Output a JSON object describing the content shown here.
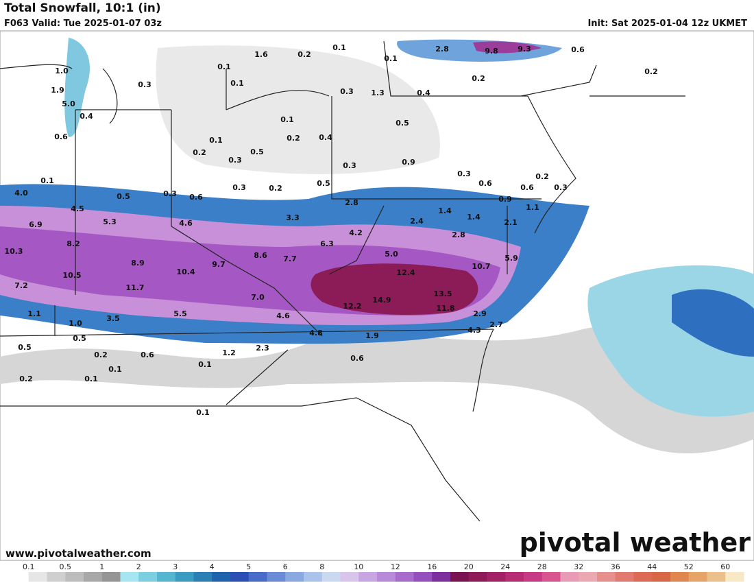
{
  "header": {
    "title": "Total Snowfall, 10:1 (in)",
    "valid": "F063 Valid: Tue 2025-01-07 03z",
    "init": "Init: Sat 2025-01-04 12z UKMET"
  },
  "footer": {
    "url": "www.pivotalweather.com",
    "logo": "pivotal weather"
  },
  "snowfall_labels": [
    "1.6",
    "0.2",
    "0.1",
    "2.8",
    "9.8",
    "9.3",
    "0.6",
    "0.1",
    "0.2",
    "1.0",
    "0.1",
    "0.3",
    "0.1",
    "1.9",
    "0.3",
    "1.3",
    "0.4",
    "0.2",
    "5.0",
    "0.4",
    "0.1",
    "0.5",
    "0.6",
    "0.1",
    "0.2",
    "0.4",
    "0.2",
    "0.5",
    "0.3",
    "0.3",
    "0.9",
    "0.3",
    "0.2",
    "0.1",
    "0.3",
    "0.2",
    "0.5",
    "0.6",
    "0.6",
    "0.3",
    "4.0",
    "0.5",
    "0.3",
    "0.6",
    "0.9",
    "2.8",
    "1.1",
    "4.5",
    "1.4",
    "3.3",
    "5.3",
    "4.6",
    "6.9",
    "2.4",
    "1.4",
    "2.1",
    "4.2",
    "2.8",
    "8.2",
    "6.3",
    "10.3",
    "5.0",
    "8.6",
    "7.7",
    "9.7",
    "8.9",
    "5.9",
    "10.7",
    "10.4",
    "12.4",
    "10.5",
    "7.2",
    "11.7",
    "13.5",
    "7.0",
    "14.9",
    "12.2",
    "11.8",
    "1.1",
    "4.6",
    "5.5",
    "3.5",
    "2.9",
    "2.7",
    "1.0",
    "4.8",
    "4.3",
    "1.9",
    "0.5",
    "0.5",
    "0.6",
    "0.2",
    "2.3",
    "1.2",
    "0.6",
    "0.1",
    "0.1",
    "0.2",
    "0.1",
    "0.1"
  ],
  "colorbar": {
    "labels": [
      "0.1",
      "0.5",
      "1",
      "2",
      "3",
      "4",
      "5",
      "6",
      "8",
      "10",
      "12",
      "16",
      "20",
      "24",
      "28",
      "32",
      "36",
      "44",
      "52",
      "60"
    ],
    "colors": [
      "#ffffff",
      "#e6e6e6",
      "#cfcfcf",
      "#bdbdbd",
      "#a8a8a8",
      "#959595",
      "#a6e6f2",
      "#7ccfe0",
      "#55b6cf",
      "#3a9cc0",
      "#2a80b4",
      "#1f63ad",
      "#2b4fb5",
      "#4a6cc9",
      "#6b8bd6",
      "#8aa9e0",
      "#a9c3ea",
      "#c9d9f1",
      "#d9c4ec",
      "#c8a6e4",
      "#b98ad9",
      "#a86ccd",
      "#9650bd",
      "#7d2f9e",
      "#7a1450",
      "#8e1a58",
      "#a32265",
      "#b62d74",
      "#c83a84",
      "#d9558f",
      "#e89ab6",
      "#eba8b0",
      "#e5908d",
      "#e17b70",
      "#dc6a55",
      "#d86845",
      "#e0864f",
      "#e6a468",
      "#ecc08b",
      "#f6e9c3"
    ]
  }
}
